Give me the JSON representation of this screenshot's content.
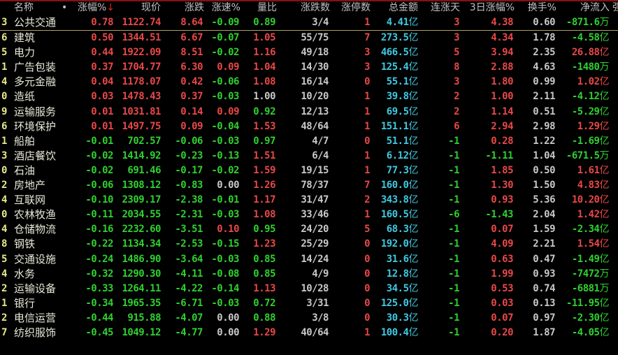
{
  "header": {
    "columns": [
      "名称",
      "•",
      "涨幅%",
      "现价",
      "涨跌",
      "涨速%",
      "量比",
      "涨跌数",
      "涨停数",
      "总金额",
      "连涨天",
      "3日涨幅%",
      "换手%",
      "净流入",
      "强"
    ],
    "sort_indicator": "↓"
  },
  "colors": {
    "up": "#e84848",
    "down": "#30d030",
    "flat": "#c8c8c8",
    "amount": "#40c8e0",
    "index": "#e8e890",
    "selected_row_line": "#b0a060"
  },
  "rows": [
    {
      "idx": "3",
      "name": "公共交通",
      "chg_pct": "0.78",
      "price": "1122.74",
      "chg": "8.64",
      "speed": "-0.09",
      "vol_ratio": "0.89",
      "up_down": "3/4",
      "limit_up": "1",
      "amount": "4.41",
      "amount_unit": "亿",
      "streak": "3",
      "chg3d": "4.38",
      "turnover": "0.60",
      "inflow": "-871.6",
      "inflow_unit": "万"
    },
    {
      "idx": "6",
      "name": "建筑",
      "chg_pct": "0.50",
      "price": "1344.51",
      "chg": "6.67",
      "speed": "-0.07",
      "vol_ratio": "1.05",
      "up_down": "55/75",
      "limit_up": "7",
      "amount": "273.5",
      "amount_unit": "亿",
      "streak": "3",
      "chg3d": "4.34",
      "turnover": "1.78",
      "inflow": "-4.58",
      "inflow_unit": "亿"
    },
    {
      "idx": "5",
      "name": "电力",
      "chg_pct": "0.44",
      "price": "1922.09",
      "chg": "8.51",
      "speed": "-0.02",
      "vol_ratio": "1.16",
      "up_down": "49/18",
      "limit_up": "3",
      "amount": "466.5",
      "amount_unit": "亿",
      "streak": "5",
      "chg3d": "3.94",
      "turnover": "2.35",
      "inflow": "26.88",
      "inflow_unit": "亿"
    },
    {
      "idx": "1",
      "name": "广告包装",
      "chg_pct": "0.37",
      "price": "1704.77",
      "chg": "6.30",
      "speed": "0.09",
      "vol_ratio": "1.04",
      "up_down": "14/30",
      "limit_up": "3",
      "amount": "125.4",
      "amount_unit": "亿",
      "streak": "8",
      "chg3d": "2.88",
      "turnover": "4.63",
      "inflow": "-1480",
      "inflow_unit": "万"
    },
    {
      "idx": "4",
      "name": "多元金融",
      "chg_pct": "0.04",
      "price": "1178.07",
      "chg": "0.42",
      "speed": "-0.06",
      "vol_ratio": "1.08",
      "up_down": "16/14",
      "limit_up": "0",
      "amount": "55.1",
      "amount_unit": "亿",
      "streak": "3",
      "chg3d": "1.80",
      "turnover": "0.99",
      "inflow": "1.02",
      "inflow_unit": "亿"
    },
    {
      "idx": "0",
      "name": "造纸",
      "chg_pct": "0.03",
      "price": "1478.43",
      "chg": "0.37",
      "speed": "-0.03",
      "vol_ratio": "1.00",
      "up_down": "10/20",
      "limit_up": "1",
      "amount": "39.8",
      "amount_unit": "亿",
      "streak": "2",
      "chg3d": "1.00",
      "turnover": "2.11",
      "inflow": "-4.12",
      "inflow_unit": "亿"
    },
    {
      "idx": "9",
      "name": "运输服务",
      "chg_pct": "0.01",
      "price": "1031.81",
      "chg": "0.14",
      "speed": "0.09",
      "vol_ratio": "0.92",
      "up_down": "12/13",
      "limit_up": "1",
      "amount": "69.5",
      "amount_unit": "亿",
      "streak": "2",
      "chg3d": "1.14",
      "turnover": "0.51",
      "inflow": "-5.29",
      "inflow_unit": "亿"
    },
    {
      "idx": "6",
      "name": "环境保护",
      "chg_pct": "0.01",
      "price": "1497.75",
      "chg": "0.09",
      "speed": "-0.04",
      "vol_ratio": "1.53",
      "up_down": "48/64",
      "limit_up": "1",
      "amount": "151.1",
      "amount_unit": "亿",
      "streak": "6",
      "chg3d": "2.94",
      "turnover": "2.98",
      "inflow": "1.29",
      "inflow_unit": "亿"
    },
    {
      "idx": "1",
      "name": "船舶",
      "chg_pct": "-0.01",
      "price": "702.57",
      "chg": "-0.06",
      "speed": "-0.03",
      "vol_ratio": "0.97",
      "up_down": "4/7",
      "limit_up": "0",
      "amount": "51.1",
      "amount_unit": "亿",
      "streak": "-1",
      "chg3d": "0.28",
      "turnover": "1.22",
      "inflow": "-1.69",
      "inflow_unit": "亿"
    },
    {
      "idx": "3",
      "name": "酒店餐饮",
      "chg_pct": "-0.02",
      "price": "1414.92",
      "chg": "-0.23",
      "speed": "-0.13",
      "vol_ratio": "1.51",
      "up_down": "6/4",
      "limit_up": "1",
      "amount": "6.12",
      "amount_unit": "亿",
      "streak": "-1",
      "chg3d": "-1.11",
      "turnover": "1.04",
      "inflow": "-671.5",
      "inflow_unit": "万"
    },
    {
      "idx": "0",
      "name": "石油",
      "chg_pct": "-0.02",
      "price": "691.46",
      "chg": "-0.17",
      "speed": "-0.02",
      "vol_ratio": "1.59",
      "up_down": "19/15",
      "limit_up": "1",
      "amount": "77.3",
      "amount_unit": "亿",
      "streak": "-1",
      "chg3d": "1.85",
      "turnover": "0.50",
      "inflow": "1.61",
      "inflow_unit": "亿"
    },
    {
      "idx": "2",
      "name": "房地产",
      "chg_pct": "-0.06",
      "price": "1308.12",
      "chg": "-0.83",
      "speed": "0.00",
      "vol_ratio": "1.26",
      "up_down": "78/37",
      "limit_up": "7",
      "amount": "160.0",
      "amount_unit": "亿",
      "streak": "-1",
      "chg3d": "1.30",
      "turnover": "1.50",
      "inflow": "4.83",
      "inflow_unit": "亿"
    },
    {
      "idx": "4",
      "name": "互联网",
      "chg_pct": "-0.10",
      "price": "2309.17",
      "chg": "-2.38",
      "speed": "-0.01",
      "vol_ratio": "1.17",
      "up_down": "31/47",
      "limit_up": "2",
      "amount": "343.8",
      "amount_unit": "亿",
      "streak": "-1",
      "chg3d": "0.93",
      "turnover": "5.36",
      "inflow": "10.20",
      "inflow_unit": "亿"
    },
    {
      "idx": "0",
      "name": "农林牧渔",
      "chg_pct": "-0.11",
      "price": "2034.55",
      "chg": "-2.31",
      "speed": "-0.03",
      "vol_ratio": "1.08",
      "up_down": "33/46",
      "limit_up": "1",
      "amount": "160.5",
      "amount_unit": "亿",
      "streak": "-6",
      "chg3d": "-1.43",
      "turnover": "2.04",
      "inflow": "1.42",
      "inflow_unit": "亿"
    },
    {
      "idx": "4",
      "name": "仓储物流",
      "chg_pct": "-0.16",
      "price": "2232.60",
      "chg": "-3.51",
      "speed": "0.10",
      "vol_ratio": "0.95",
      "up_down": "24/20",
      "limit_up": "5",
      "amount": "68.3",
      "amount_unit": "亿",
      "streak": "-1",
      "chg3d": "0.07",
      "turnover": "1.59",
      "inflow": "-2.34",
      "inflow_unit": "亿"
    },
    {
      "idx": "8",
      "name": "钢铁",
      "chg_pct": "-0.22",
      "price": "1134.34",
      "chg": "-2.53",
      "speed": "-0.15",
      "vol_ratio": "1.23",
      "up_down": "25/29",
      "limit_up": "0",
      "amount": "192.0",
      "amount_unit": "亿",
      "streak": "-1",
      "chg3d": "4.09",
      "turnover": "2.21",
      "inflow": "1.54",
      "inflow_unit": "亿"
    },
    {
      "idx": "5",
      "name": "交通设施",
      "chg_pct": "-0.24",
      "price": "1486.90",
      "chg": "-3.64",
      "speed": "-0.03",
      "vol_ratio": "0.85",
      "up_down": "14/24",
      "limit_up": "0",
      "amount": "31.6",
      "amount_unit": "亿",
      "streak": "-1",
      "chg3d": "0.63",
      "turnover": "0.47",
      "inflow": "-1.49",
      "inflow_unit": "亿"
    },
    {
      "idx": "4",
      "name": "水务",
      "chg_pct": "-0.32",
      "price": "1290.30",
      "chg": "-4.11",
      "speed": "-0.08",
      "vol_ratio": "0.85",
      "up_down": "4/9",
      "limit_up": "0",
      "amount": "12.8",
      "amount_unit": "亿",
      "streak": "-1",
      "chg3d": "1.99",
      "turnover": "0.93",
      "inflow": "-7472",
      "inflow_unit": "万"
    },
    {
      "idx": "2",
      "name": "运输设备",
      "chg_pct": "-0.33",
      "price": "1264.11",
      "chg": "-4.22",
      "speed": "-0.14",
      "vol_ratio": "1.13",
      "up_down": "10/28",
      "limit_up": "0",
      "amount": "34.5",
      "amount_unit": "亿",
      "streak": "-1",
      "chg3d": "0.53",
      "turnover": "0.74",
      "inflow": "-6881",
      "inflow_unit": "万"
    },
    {
      "idx": "1",
      "name": "银行",
      "chg_pct": "-0.34",
      "price": "1965.35",
      "chg": "-6.71",
      "speed": "-0.03",
      "vol_ratio": "0.72",
      "up_down": "3/31",
      "limit_up": "0",
      "amount": "125.0",
      "amount_unit": "亿",
      "streak": "-1",
      "chg3d": "0.03",
      "turnover": "0.13",
      "inflow": "-11.95",
      "inflow_unit": "亿"
    },
    {
      "idx": "2",
      "name": "电信运营",
      "chg_pct": "-0.44",
      "price": "915.88",
      "chg": "-4.07",
      "speed": "0.00",
      "vol_ratio": "0.88",
      "up_down": "3/8",
      "limit_up": "0",
      "amount": "30.3",
      "amount_unit": "亿",
      "streak": "-1",
      "chg3d": "0.07",
      "turnover": "0.97",
      "inflow": "-2.30",
      "inflow_unit": "亿"
    },
    {
      "idx": "7",
      "name": "纺织服饰",
      "chg_pct": "-0.45",
      "price": "1049.12",
      "chg": "-4.77",
      "speed": "0.00",
      "vol_ratio": "1.29",
      "up_down": "40/64",
      "limit_up": "1",
      "amount": "100.4",
      "amount_unit": "亿",
      "streak": "-1",
      "chg3d": "0.20",
      "turnover": "1.87",
      "inflow": "-4.05",
      "inflow_unit": "亿"
    }
  ]
}
